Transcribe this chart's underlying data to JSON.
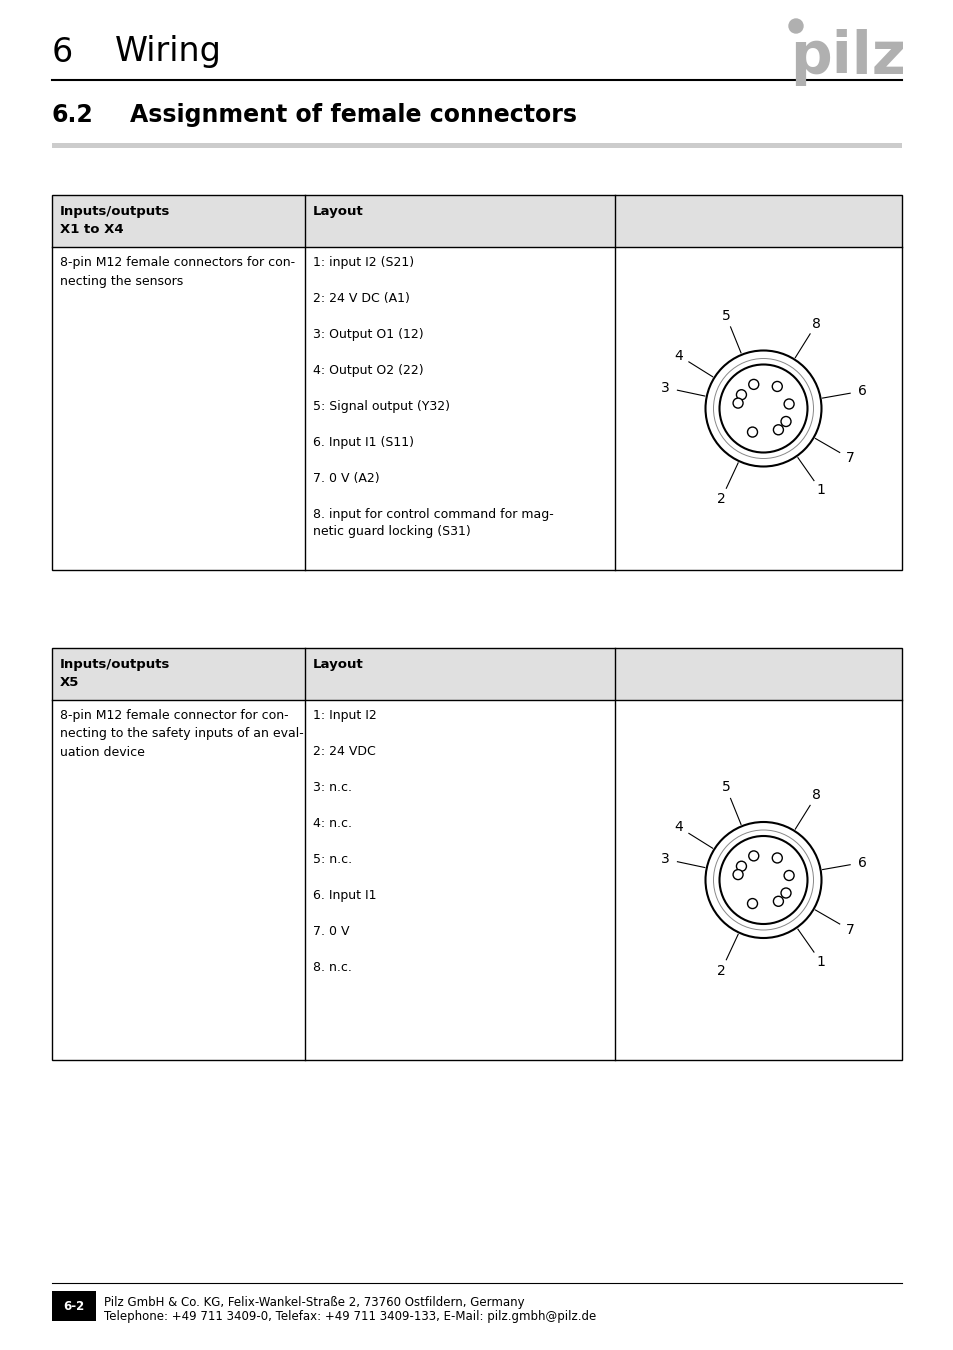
{
  "title_chapter": "6",
  "title_chapter_text": "Wiring",
  "section_number": "6.2",
  "section_title": "Assignment of female connectors",
  "pilz_logo_color": "#b0b0b0",
  "header_bg_color": "#e0e0e0",
  "table_border_color": "#000000",
  "table1_header_col1_line1": "Inputs/outputs",
  "table1_header_col1_line2": "X1 to X4",
  "table1_header_col2": "Layout",
  "table1_row_col1": "8-pin M12 female connectors for con-\nnecting the sensors",
  "table1_row_col2_lines": [
    "1: input I2 (S21)",
    "2: 24 V DC (A1)",
    "3: Output O1 (12)",
    "4: Output O2 (22)",
    "5: Signal output (Y32)",
    "6. Input I1 (S11)",
    "7. 0 V (A2)",
    "8. input for control command for mag-\nnetic guard locking (S31)"
  ],
  "table2_header_col1_line1": "Inputs/outputs",
  "table2_header_col1_line2": "X5",
  "table2_header_col2": "Layout",
  "table2_row_col1": "8-pin M12 female connector for con-\nnecting to the safety inputs of an eval-\nuation device",
  "table2_row_col2_lines": [
    "1: Input I2",
    "2: 24 VDC",
    "3: n.c.",
    "4: n.c.",
    "5: n.c.",
    "6. Input I1",
    "7. 0 V",
    "8. n.c."
  ],
  "footer_page": "6-2",
  "footer_company": "Pilz GmbH & Co. KG, Felix-Wankel-Straße 2, 73760 Ostfildern, Germany",
  "footer_phone": "Telephone: +49 711 3409-0, Telefax: +49 711 3409-133, E-Mail: pilz.gmbh@pilz.de",
  "pin_label_angles": {
    "1": -55,
    "2": -115,
    "3": 168,
    "4": 148,
    "5": 112,
    "6": 10,
    "7": -30,
    "8": 58
  },
  "pin_hole_angles": {
    "1": -55,
    "2": -115,
    "3": 168,
    "4": 148,
    "5": 112,
    "6": 10,
    "7": -30,
    "8": 58
  }
}
